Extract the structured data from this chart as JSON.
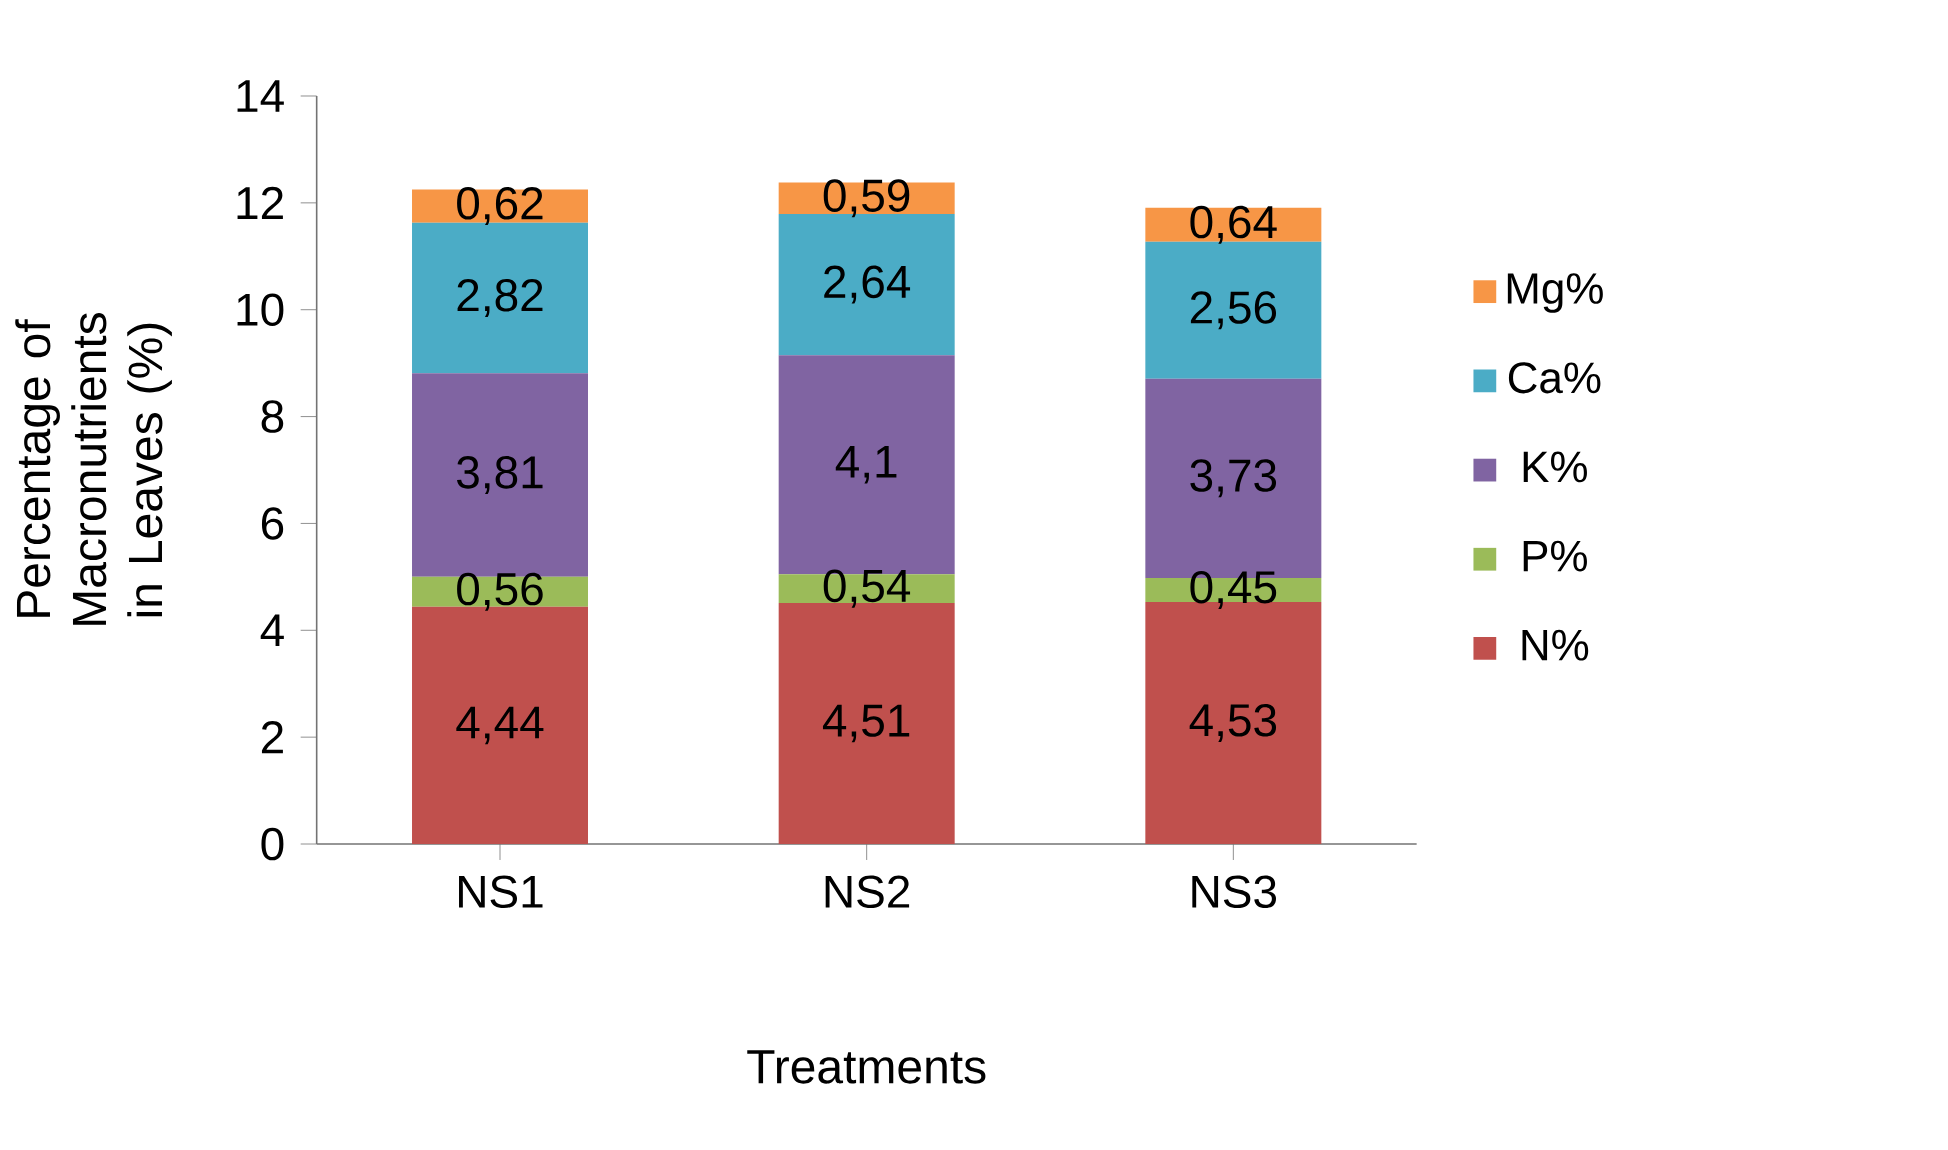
{
  "chart_data": {
    "type": "bar",
    "stacked": true,
    "xlabel": "Treatments",
    "ylabel": "Percentage of Macronutrients in Leaves (%)",
    "categories": [
      "NS1",
      "NS2",
      "NS3"
    ],
    "ylim": [
      0,
      14
    ],
    "yticks": [
      0,
      2,
      4,
      6,
      8,
      10,
      12,
      14
    ],
    "legend": "right",
    "grid": false,
    "series": [
      {
        "name": "N%",
        "color": "#c0504d",
        "values": [
          4.44,
          4.51,
          4.53
        ],
        "value_labels": [
          "4,44",
          "4,51",
          "4,53"
        ]
      },
      {
        "name": "P%",
        "color": "#9bbb59",
        "values": [
          0.56,
          0.54,
          0.45
        ],
        "value_labels": [
          "0,56",
          "0,54",
          "0,45"
        ]
      },
      {
        "name": "K%",
        "color": "#8064a2",
        "values": [
          3.81,
          4.1,
          3.73
        ],
        "value_labels": [
          "3,81",
          "4,1",
          "3,73"
        ]
      },
      {
        "name": "Ca%",
        "color": "#4bacc6",
        "values": [
          2.82,
          2.64,
          2.56
        ],
        "value_labels": [
          "2,82",
          "2,64",
          "2,56"
        ]
      },
      {
        "name": "Mg%",
        "color": "#f79646",
        "values": [
          0.62,
          0.59,
          0.64
        ],
        "value_labels": [
          "0,62",
          "0,59",
          "0,64"
        ]
      }
    ]
  }
}
